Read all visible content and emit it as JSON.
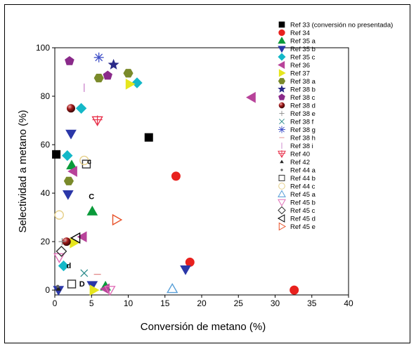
{
  "chart_data": {
    "type": "scatter",
    "xlabel": "Conversión de metano (%)",
    "ylabel": "Selectividad a metano (%)",
    "xlim": [
      0,
      40
    ],
    "ylim": [
      -2,
      100
    ],
    "xticks": [
      0,
      5,
      10,
      15,
      20,
      25,
      30,
      35,
      40
    ],
    "yticks": [
      0,
      20,
      40,
      60,
      80,
      100
    ],
    "legend_position": "right",
    "series": [
      {
        "name": "Ref 33 (conversión no presentada)",
        "marker": "square",
        "color": "#000000",
        "points": [
          [
            0.2,
            56
          ],
          [
            12.8,
            63
          ]
        ]
      },
      {
        "name": "Ref 34",
        "marker": "circle",
        "color": "#e8211e",
        "points": [
          [
            16.5,
            47
          ],
          [
            18.4,
            11.5
          ],
          [
            32.6,
            0
          ]
        ]
      },
      {
        "name": "Ref 35 a",
        "marker": "triangle-up",
        "color": "#0a9a3a",
        "points": [
          [
            2.3,
            51.5
          ],
          [
            5.1,
            32.5
          ],
          [
            6.9,
            1.5
          ]
        ]
      },
      {
        "name": "Ref 35 b",
        "marker": "triangle-down",
        "color": "#2b37a8",
        "points": [
          [
            1.8,
            39.5
          ],
          [
            2.2,
            64.5
          ],
          [
            5.1,
            2
          ],
          [
            17.8,
            8.5
          ],
          [
            0.5,
            0
          ]
        ]
      },
      {
        "name": "Ref 35 c",
        "marker": "diamond",
        "color": "#14b8c8",
        "points": [
          [
            1.2,
            10
          ],
          [
            1.7,
            55.5
          ],
          [
            3.6,
            75
          ],
          [
            11.2,
            85.5
          ]
        ]
      },
      {
        "name": "Ref 36",
        "marker": "triangle-left",
        "color": "#b8439a",
        "points": [
          [
            2.5,
            49
          ],
          [
            3.8,
            22
          ],
          [
            26.8,
            79.5
          ],
          [
            6.9,
            0.5
          ]
        ]
      },
      {
        "name": "Ref 37",
        "marker": "triangle-right",
        "color": "#e6e61e",
        "points": [
          [
            2.6,
            19.5
          ],
          [
            10.2,
            85
          ],
          [
            5.3,
            0
          ]
        ]
      },
      {
        "name": "Ref 38 a",
        "marker": "hexagon",
        "color": "#7a8a2a",
        "points": [
          [
            1.9,
            45
          ],
          [
            6.0,
            87.5
          ],
          [
            10.0,
            89.5
          ]
        ]
      },
      {
        "name": "Ref 38 b",
        "marker": "star",
        "color": "#2a2a88",
        "points": [
          [
            8.0,
            93
          ]
        ]
      },
      {
        "name": "Ref 38 c",
        "marker": "pentagon",
        "color": "#8a2a8a",
        "points": [
          [
            2.0,
            94.5
          ],
          [
            7.2,
            88.5
          ]
        ]
      },
      {
        "name": "Ref 38 d",
        "marker": "sphere",
        "color": "#a01818",
        "points": [
          [
            2.2,
            75
          ],
          [
            1.6,
            20
          ]
        ]
      },
      {
        "name": "Ref 38 e",
        "marker": "plus",
        "color": "#888888",
        "points": [
          [
            1.0,
            20
          ]
        ]
      },
      {
        "name": "Ref 38 f",
        "marker": "x",
        "color": "#2a8a8a",
        "points": [
          [
            4.0,
            7
          ]
        ]
      },
      {
        "name": "Ref 38 g",
        "marker": "asterisk",
        "color": "#4050c8",
        "points": [
          [
            6.0,
            96
          ]
        ]
      },
      {
        "name": "Ref 38 h",
        "marker": "hline",
        "color": "#e08080",
        "points": [
          [
            5.8,
            6.5
          ]
        ]
      },
      {
        "name": "Ref 38 i",
        "marker": "vline",
        "color": "#c87ac8",
        "points": [
          [
            4.0,
            83.5
          ]
        ]
      },
      {
        "name": "Ref 40",
        "marker": "triangle-down-cross",
        "color": "#e8304a",
        "points": [
          [
            5.8,
            70
          ]
        ]
      },
      {
        "name": "Ref 42",
        "marker": "small-triangle",
        "color": "#202020",
        "points": [
          [
            0.5,
            0.5
          ]
        ]
      },
      {
        "name": "Ref 44 a",
        "marker": "dot",
        "color": "#606060",
        "points": [
          [
            0.4,
            1.5
          ]
        ]
      },
      {
        "name": "Ref 44 b",
        "marker": "open-square",
        "color": "#333333",
        "points": [
          [
            4.3,
            52
          ],
          [
            2.3,
            2.5
          ]
        ]
      },
      {
        "name": "Ref 44 c",
        "marker": "open-circle",
        "color": "#e6d08a",
        "points": [
          [
            4.0,
            53.5
          ],
          [
            0.6,
            31
          ]
        ]
      },
      {
        "name": "Ref 45 a",
        "marker": "open-triangle-up",
        "color": "#5aa0d8",
        "points": [
          [
            16.0,
            0.5
          ]
        ]
      },
      {
        "name": "Ref 45 b",
        "marker": "open-triangle-down",
        "color": "#e070b8",
        "points": [
          [
            0.6,
            13.5
          ],
          [
            7.5,
            0
          ]
        ]
      },
      {
        "name": "Ref 45 c",
        "marker": "open-diamond",
        "color": "#333333",
        "points": [
          [
            0.9,
            16
          ]
        ]
      },
      {
        "name": "Ref 45 d",
        "marker": "open-triangle-left",
        "color": "#000000",
        "points": [
          [
            2.9,
            21.5
          ]
        ]
      },
      {
        "name": "Ref 45 e",
        "marker": "open-triangle-right",
        "color": "#e8522a",
        "points": [
          [
            8.4,
            29
          ]
        ]
      }
    ],
    "annotations": [
      {
        "text": "c",
        "x": 4.7,
        "y": 52
      },
      {
        "text": "C",
        "x": 5.0,
        "y": 37.5
      },
      {
        "text": "d",
        "x": 1.9,
        "y": 9
      },
      {
        "text": "D",
        "x": 3.7,
        "y": 1.5
      }
    ]
  }
}
